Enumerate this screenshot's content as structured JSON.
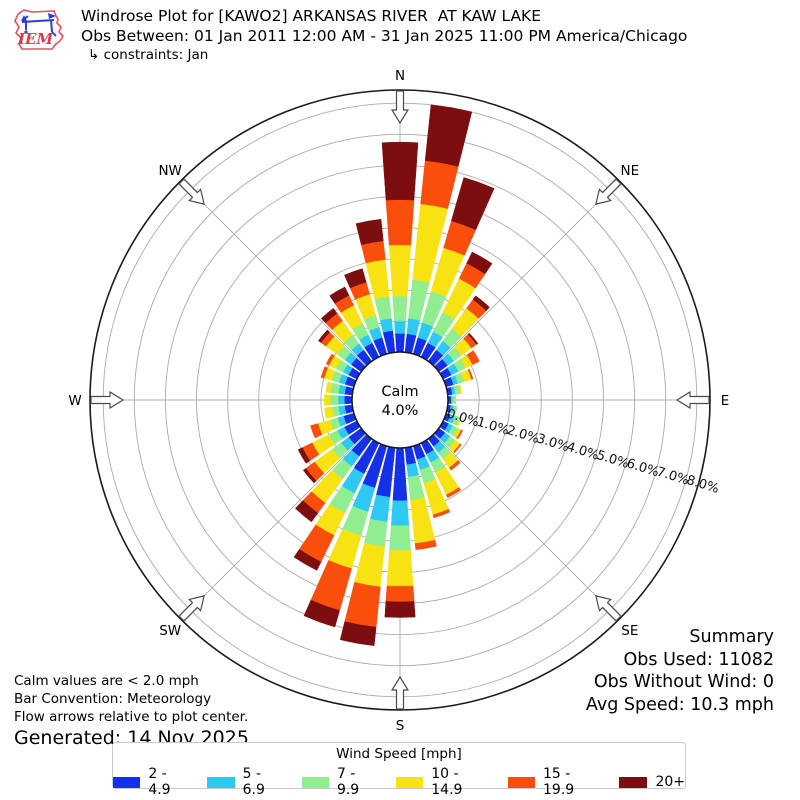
{
  "header": {
    "title": "Windrose Plot for [KAWO2] ARKANSAS RIVER  AT KAW LAKE",
    "subtitle": "Obs Between: 01 Jan 2011 12:00 AM - 31 Jan 2025 11:00 PM America/Chicago",
    "constraints": "↳ constraints: Jan",
    "logo_text": "IEM"
  },
  "rose": {
    "compass_labels": [
      "N",
      "NE",
      "E",
      "SE",
      "S",
      "SW",
      "W",
      "NW"
    ],
    "ring_labels": [
      "0.0%",
      "1.0%",
      "2.0%",
      "3.0%",
      "4.0%",
      "5.0%",
      "6.0%",
      "7.0%",
      "8.0%"
    ],
    "calm_line1": "Calm",
    "calm_line2": "4.0%"
  },
  "summary": {
    "title": "Summary",
    "obs_used": "Obs Used: 11082",
    "obs_without_wind": "Obs Without Wind: 0",
    "avg_speed": "Avg Speed: 10.3 mph"
  },
  "notes": {
    "calm": "Calm values are < 2.0 mph",
    "convention": "Bar Convention: Meteorology",
    "arrows": "Flow arrows relative to plot center.",
    "generated": "Generated: 14 Nov 2025"
  },
  "legend": {
    "title": "Wind Speed [mph]"
  },
  "chart_data": {
    "type": "windrose (stacked polar bar)",
    "units": "percent of observations",
    "calm_percent": 4.0,
    "calm_threshold": "< 2.0 mph",
    "bar_convention": "Meteorology",
    "radial_axis": {
      "min": 0,
      "max": 8,
      "ring_interval": 1.0,
      "tick_labels": [
        "0.0%",
        "1.0%",
        "2.0%",
        "3.0%",
        "4.0%",
        "5.0%",
        "6.0%",
        "7.0%",
        "8.0%"
      ]
    },
    "direction_step_deg": 10,
    "directions_deg": [
      0,
      10,
      20,
      30,
      40,
      50,
      60,
      70,
      80,
      90,
      100,
      110,
      120,
      130,
      140,
      150,
      160,
      170,
      180,
      190,
      200,
      210,
      220,
      230,
      240,
      250,
      260,
      270,
      280,
      290,
      300,
      310,
      320,
      330,
      340,
      350
    ],
    "series": [
      {
        "name": "2 - 4.9",
        "color": "#1430E8",
        "values": [
          0.6,
          0.6,
          0.55,
          0.5,
          0.45,
          0.35,
          0.3,
          0.25,
          0.15,
          0.1,
          0.1,
          0.15,
          0.2,
          0.25,
          0.3,
          0.4,
          0.45,
          0.55,
          1.7,
          1.6,
          1.4,
          1.1,
          0.7,
          0.5,
          0.45,
          0.35,
          0.25,
          0.25,
          0.25,
          0.3,
          0.3,
          0.4,
          0.45,
          0.5,
          0.55,
          0.7
        ]
      },
      {
        "name": "5 - 6.9",
        "color": "#2EC9F2",
        "values": [
          0.4,
          0.5,
          0.5,
          0.4,
          0.35,
          0.25,
          0.25,
          0.15,
          0.1,
          0.05,
          0.1,
          0.15,
          0.15,
          0.2,
          0.25,
          0.3,
          0.35,
          0.4,
          0.8,
          0.8,
          0.8,
          0.7,
          0.4,
          0.3,
          0.25,
          0.2,
          0.2,
          0.2,
          0.2,
          0.2,
          0.2,
          0.25,
          0.25,
          0.3,
          0.35,
          0.4
        ]
      },
      {
        "name": "7 - 9.9",
        "color": "#90EE90",
        "values": [
          0.8,
          1.25,
          1.05,
          0.7,
          0.5,
          0.3,
          0.25,
          0.2,
          0.15,
          0.1,
          0.1,
          0.15,
          0.2,
          0.2,
          0.25,
          0.35,
          0.45,
          0.75,
          0.8,
          0.8,
          0.8,
          0.7,
          0.5,
          0.35,
          0.3,
          0.25,
          0.2,
          0.25,
          0.25,
          0.25,
          0.25,
          0.3,
          0.35,
          0.4,
          0.4,
          0.7
        ]
      },
      {
        "name": "10 - 14.9",
        "color": "#F6E311",
        "values": [
          1.65,
          2.45,
          1.45,
          1.2,
          0.8,
          0.4,
          0.25,
          0.25,
          0.05,
          0,
          0,
          0.05,
          0.1,
          0.2,
          0.35,
          0.8,
          1.05,
          1.4,
          1.15,
          1.3,
          1.1,
          0.8,
          0.95,
          0.7,
          0.6,
          0.4,
          0.25,
          0.2,
          0.15,
          0.25,
          0.25,
          0.45,
          0.55,
          0.65,
          0.7,
          1.2
        ]
      },
      {
        "name": "15 - 19.9",
        "color": "#FA4F0C",
        "values": [
          1.45,
          1.4,
          0.9,
          0.55,
          0.35,
          0.2,
          0.25,
          0.05,
          0,
          0,
          0,
          0,
          0.05,
          0.05,
          0.1,
          0.1,
          0.1,
          0.2,
          0.5,
          1.3,
          1.4,
          0.95,
          0.4,
          0.35,
          0.35,
          0.25,
          0,
          0,
          0,
          0.1,
          0.1,
          0.2,
          0.3,
          0.35,
          0.4,
          0.6
        ]
      },
      {
        "name": "20+",
        "color": "#7D0E10",
        "values": [
          1.85,
          1.8,
          1.45,
          0.4,
          0.15,
          0.05,
          0,
          0,
          0,
          0,
          0,
          0,
          0,
          0,
          0,
          0,
          0,
          0,
          0.5,
          0.6,
          0.55,
          0.3,
          0.35,
          0.1,
          0.15,
          0,
          0,
          0,
          0,
          0,
          0,
          0.1,
          0.2,
          0.3,
          0.45,
          0.7
        ]
      }
    ],
    "legend_title": "Wind Speed [mph]",
    "grid_color": "#ababab",
    "outer_circle_color": "#1a1a1a"
  }
}
